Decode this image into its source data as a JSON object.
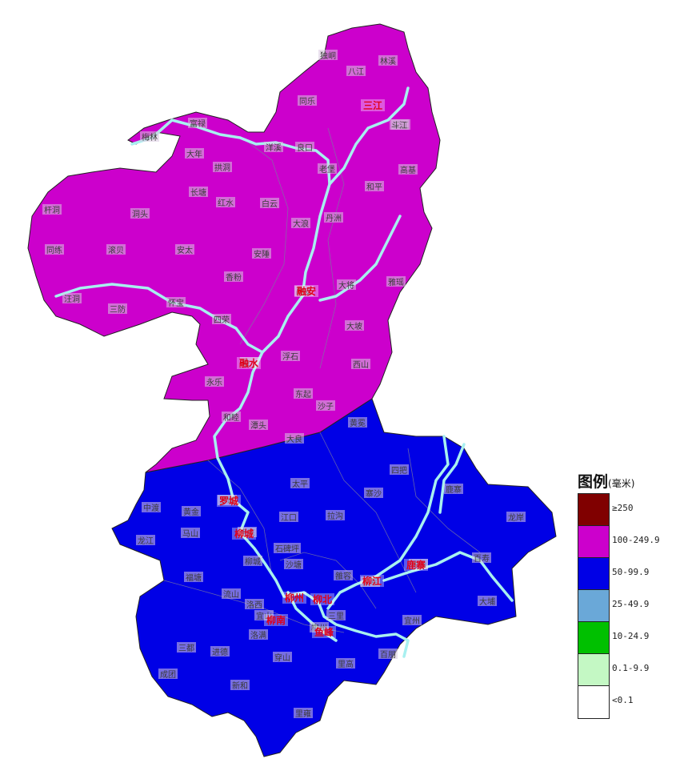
{
  "map": {
    "regions": [
      {
        "name": "north",
        "category": "100-249.9",
        "color": "#cc00cc"
      },
      {
        "name": "south",
        "category": "50-99.9",
        "color": "#0000e6"
      }
    ],
    "river_color": "#a8f0f0",
    "places": [
      "独峒",
      "林溪",
      "八江",
      "同乐",
      "三江",
      "斗江",
      "富禄",
      "梅林",
      "良口",
      "洋溪",
      "老堡",
      "大年",
      "丹洲",
      "高基",
      "拱洞",
      "和平",
      "长塘",
      "红水",
      "白云",
      "大浪",
      "杆洞",
      "洞头",
      "同练",
      "滚贝",
      "安太",
      "安陲",
      "雅瑶",
      "香粉",
      "融安",
      "大将",
      "汪洞",
      "三防",
      "怀宝",
      "四荣",
      "大坡",
      "融水",
      "浮石",
      "西山",
      "永乐",
      "东起",
      "沙子",
      "和睦",
      "潭头",
      "大良",
      "黄冕",
      "中渡",
      "罗城",
      "太平",
      "寨沙",
      "鹿寨",
      "四把",
      "龙岸",
      "马山",
      "洛东",
      "黄金",
      "江口",
      "拉沟",
      "石碑坪",
      "沙塘",
      "雒容",
      "冲脉",
      "柳城",
      "柳州",
      "荣军",
      "大埔",
      "宜州",
      "龙江",
      "福塘",
      "流山",
      "洛西",
      "洛满",
      "进德",
      "三都",
      "穿山",
      "成团",
      "新和",
      "里高",
      "百朋",
      "里雍",
      "百寿",
      "三里",
      "宜山",
      "鹿寨县",
      "凤山"
    ],
    "counties": [
      "三江",
      "融安",
      "融水",
      "罗城",
      "柳城",
      "鹿寨",
      "柳江",
      "柳州",
      "柳南",
      "柳北",
      "鱼峰"
    ]
  },
  "legend": {
    "title": "图例",
    "unit": "(毫米)",
    "items": [
      {
        "label": "≥250",
        "color": "#800000"
      },
      {
        "label": "100-249.9",
        "color": "#cc00cc"
      },
      {
        "label": "50-99.9",
        "color": "#0000e6"
      },
      {
        "label": "25-49.9",
        "color": "#6aa8d8"
      },
      {
        "label": "10-24.9",
        "color": "#00c000"
      },
      {
        "label": "0.1-9.9",
        "color": "#c4f8c4"
      },
      {
        "label": "<0.1",
        "color": "#ffffff"
      }
    ]
  }
}
